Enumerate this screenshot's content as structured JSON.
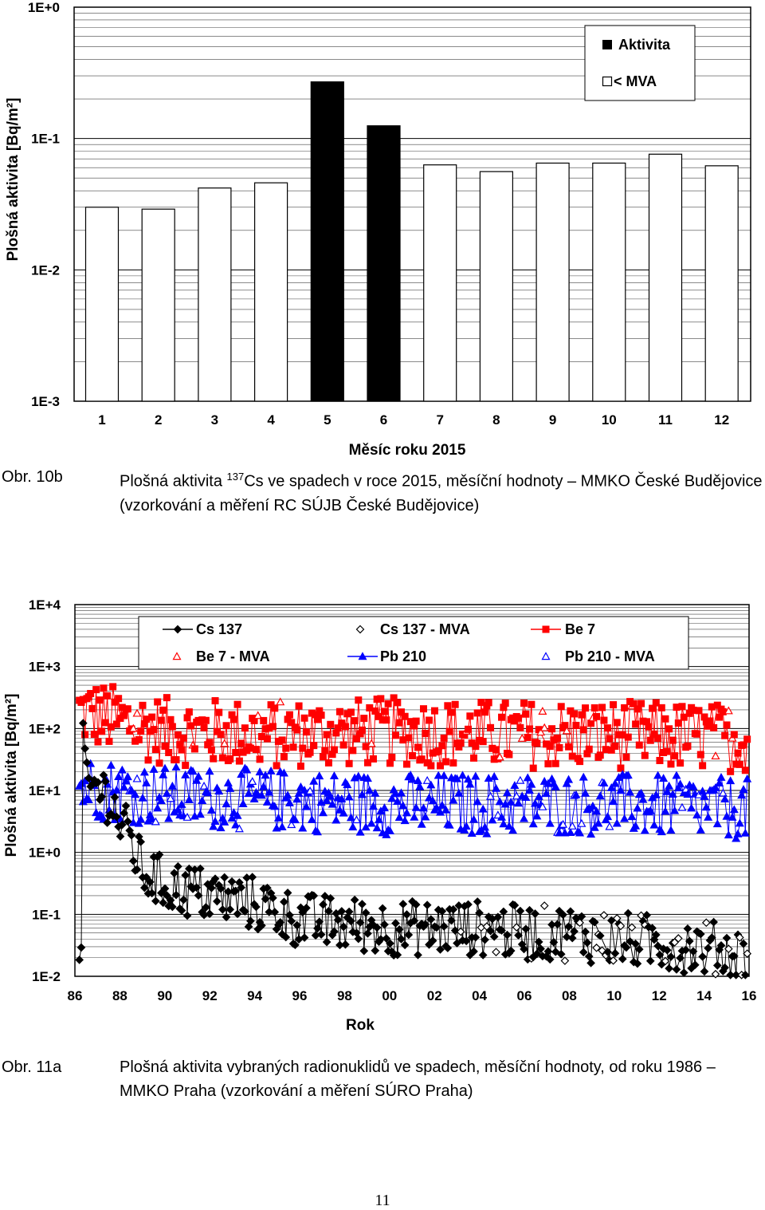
{
  "chart_data": [
    {
      "type": "bar",
      "ylabel": "Plošná aktivita [Bq/m²]",
      "xlabel": "Měsíc roku 2015",
      "yscale": "log",
      "ylim": [
        0.001,
        1
      ],
      "yticks": [
        "1E-3",
        "1E-2",
        "1E-1",
        "1E+0"
      ],
      "categories": [
        "1",
        "2",
        "3",
        "4",
        "5",
        "6",
        "7",
        "8",
        "9",
        "10",
        "11",
        "12"
      ],
      "values": [
        0.03,
        0.029,
        0.042,
        0.046,
        0.27,
        0.125,
        0.063,
        0.056,
        0.065,
        0.065,
        0.076,
        0.062
      ],
      "types": [
        "mva",
        "mva",
        "mva",
        "mva",
        "act",
        "act",
        "mva",
        "mva",
        "mva",
        "mva",
        "mva",
        "mva"
      ],
      "legend": [
        {
          "label": "Aktivita",
          "style": "filled"
        },
        {
          "label": "< MVA",
          "style": "open"
        }
      ],
      "legend_position": "top-right",
      "grid": true
    },
    {
      "type": "scatter",
      "ylabel": "Plošná aktivita [Bq/m²]",
      "xlabel": "Rok",
      "yscale": "log",
      "ylim": [
        0.01,
        10000
      ],
      "yticks": [
        "1E-2",
        "1E-1",
        "1E+0",
        "1E+1",
        "1E+2",
        "1E+3",
        "1E+4"
      ],
      "xticks": [
        "86",
        "88",
        "90",
        "92",
        "94",
        "96",
        "98",
        "00",
        "02",
        "04",
        "06",
        "08",
        "10",
        "12",
        "14",
        "16"
      ],
      "xlim": [
        1986,
        2016
      ],
      "legend_position": "top",
      "grid": true,
      "series": [
        {
          "name": "Cs 137",
          "color": "#000000",
          "marker": "diamond-filled",
          "anchors": [
            [
              1986.3,
              300
            ],
            [
              1986.5,
              10
            ],
            [
              1987,
              12
            ],
            [
              1987.5,
              8
            ],
            [
              1988,
              3
            ],
            [
              1988.5,
              1.5
            ],
            [
              1989,
              0.5
            ],
            [
              1990,
              0.3
            ],
            [
              1992,
              0.2
            ],
            [
              1994,
              0.15
            ],
            [
              1996,
              0.08
            ],
            [
              1998,
              0.07
            ],
            [
              2000,
              0.06
            ],
            [
              2002,
              0.06
            ],
            [
              2004,
              0.06
            ],
            [
              2006,
              0.05
            ],
            [
              2008,
              0.05
            ],
            [
              2010,
              0.04
            ],
            [
              2012,
              0.035
            ],
            [
              2014,
              0.03
            ],
            [
              2016,
              0.02
            ]
          ]
        },
        {
          "name": "Cs 137 - MVA",
          "color": "#000000",
          "marker": "diamond-open"
        },
        {
          "name": "Be 7",
          "color": "#ff0000",
          "marker": "square-filled",
          "anchors": [
            [
              1986,
              200
            ],
            [
              1990,
              90
            ],
            [
              1995,
              80
            ],
            [
              2000,
              90
            ],
            [
              2005,
              80
            ],
            [
              2010,
              80
            ],
            [
              2016,
              70
            ]
          ]
        },
        {
          "name": "Be 7 - MVA",
          "color": "#ff0000",
          "marker": "triangle-open"
        },
        {
          "name": "Pb 210",
          "color": "#0000ff",
          "marker": "triangle-filled",
          "anchors": [
            [
              1986,
              12
            ],
            [
              1990,
              8
            ],
            [
              1995,
              7
            ],
            [
              2000,
              6
            ],
            [
              2005,
              6
            ],
            [
              2010,
              6
            ],
            [
              2016,
              5
            ]
          ]
        },
        {
          "name": "Pb 210 - MVA",
          "color": "#0000ff",
          "marker": "triangle-open"
        }
      ]
    }
  ],
  "captions": {
    "fig10b": {
      "number": "Obr. 10b",
      "text_before_sup": "Plošná aktivita ",
      "sup": "137",
      "text_after_sup": "Cs ve spadech v roce 2015, měsíční hodnoty – MMKO České Budějovice (vzorkování a měření RC SÚJB České Budějovice)"
    },
    "fig11a": {
      "number": "Obr. 11a",
      "text": "Plošná aktivita vybraných radionuklidů ve spadech, měsíční hodnoty, od roku 1986 – MMKO Praha (vzorkování a měření SÚRO Praha)"
    }
  },
  "page_number": "11"
}
